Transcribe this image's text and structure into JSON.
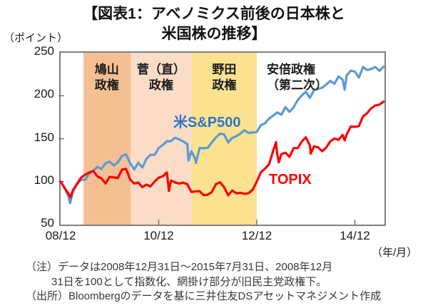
{
  "header": {
    "title_lines": [
      "【図表1：アベノミクス前後の日本株と",
      "米国株の推移】"
    ]
  },
  "chart_data": {
    "type": "line",
    "title": "【図表1：アベノミクス前後の日本株と米国株の推移】",
    "y_unit_label": "（ポイント）",
    "x_unit_label": "（年/月）",
    "x_definition": "months elapsed since 2008/12 (2008/12/31 = 0, 2015/07/31 = 79), indexed 2008/12/31 = 100",
    "ylim": [
      50,
      250
    ],
    "xlim_months": [
      0,
      79
    ],
    "grid": false,
    "y_ticks": [
      250,
      200,
      150,
      100,
      50
    ],
    "x_ticks": [
      {
        "label": "08/12",
        "month": 0
      },
      {
        "label": "10/12",
        "month": 24
      },
      {
        "label": "12/12",
        "month": 48
      },
      {
        "label": "14/12",
        "month": 72
      }
    ],
    "regions": [
      {
        "label": "鳩山政権",
        "label_lines": "鳩山\n政権",
        "start_month": 5.5,
        "end_month": 17.1,
        "color": "#F4C093",
        "label_align": "center"
      },
      {
        "label": "菅（直）政権",
        "label_lines": "菅（直）\n政権",
        "start_month": 17.1,
        "end_month": 32.1,
        "color": "#FBDCC6",
        "label_align": "center"
      },
      {
        "label": "野田政権",
        "label_lines": "野田\n政権",
        "start_month": 32.1,
        "end_month": 48.0,
        "color": "#FAE291",
        "label_align": "center"
      },
      {
        "label": "安倍政権（第二次）",
        "label_lines": "安倍政権\n（第二次）",
        "start_month": 48.0,
        "end_month": 79.0,
        "color": "#FFFFFF",
        "label_align": "left"
      }
    ],
    "series": [
      {
        "name": "米S&P500",
        "line_color": "#5B9BD5",
        "label_color": "#2E74C8",
        "points": [
          [
            0,
            100
          ],
          [
            1,
            92.5
          ],
          [
            2,
            81.5
          ],
          [
            2.3,
            74.9
          ],
          [
            3,
            88.1
          ],
          [
            4,
            96.6
          ],
          [
            5,
            102.1
          ],
          [
            6,
            102.3
          ],
          [
            7,
            109.3
          ],
          [
            8,
            112.9
          ],
          [
            9,
            117.1
          ],
          [
            10,
            114.7
          ],
          [
            11,
            121.4
          ],
          [
            12,
            123.4
          ],
          [
            13,
            119
          ],
          [
            14,
            122.4
          ],
          [
            15,
            129.8
          ],
          [
            16,
            131.8
          ],
          [
            17,
            121.2
          ],
          [
            17.8,
            116
          ],
          [
            18,
            114.1
          ],
          [
            19,
            122.1
          ],
          [
            20,
            116.4
          ],
          [
            21,
            126.6
          ],
          [
            22,
            131.3
          ],
          [
            23,
            131.2
          ],
          [
            24,
            139.2
          ],
          [
            25,
            142.5
          ],
          [
            26,
            147.1
          ],
          [
            27,
            147
          ],
          [
            28,
            151.2
          ],
          [
            29,
            149.2
          ],
          [
            30,
            146.7
          ],
          [
            31,
            143.7
          ],
          [
            31.3,
            124.5
          ],
          [
            32,
            135.5
          ],
          [
            33,
            125.5
          ],
          [
            33.1,
            121.7
          ],
          [
            34,
            139.2
          ],
          [
            35,
            138.9
          ],
          [
            36,
            139.3
          ],
          [
            37,
            145.6
          ],
          [
            38,
            151.5
          ],
          [
            39,
            155.9
          ],
          [
            40,
            154.9
          ],
          [
            41,
            145.6
          ],
          [
            42,
            151
          ],
          [
            43,
            152.9
          ],
          [
            44,
            156
          ],
          [
            45,
            159.7
          ],
          [
            46,
            156.7
          ],
          [
            47,
            157.1
          ],
          [
            48,
            157.9
          ],
          [
            49,
            165.8
          ],
          [
            50,
            167.7
          ],
          [
            51,
            173.5
          ],
          [
            52,
            176.7
          ],
          [
            53,
            180.6
          ],
          [
            54,
            177.9
          ],
          [
            55,
            186.8
          ],
          [
            56,
            181.2
          ],
          [
            57,
            186.6
          ],
          [
            58,
            194.9
          ],
          [
            59,
            200.2
          ],
          [
            60,
            204.6
          ],
          [
            61,
            197.5
          ],
          [
            62,
            206.5
          ],
          [
            63,
            207.9
          ],
          [
            64,
            209.3
          ],
          [
            65,
            213.1
          ],
          [
            66,
            217.2
          ],
          [
            67,
            213.9
          ],
          [
            68,
            222.4
          ],
          [
            69,
            218.6
          ],
          [
            69.5,
            207
          ],
          [
            70,
            223.6
          ],
          [
            71,
            229.2
          ],
          [
            72,
            228
          ],
          [
            73,
            221.2
          ],
          [
            74,
            233.5
          ],
          [
            75,
            229.9
          ],
          [
            76,
            231.1
          ],
          [
            77,
            233.5
          ],
          [
            78,
            228.9
          ],
          [
            79,
            233.7
          ]
        ]
      },
      {
        "name": "TOPIX",
        "line_color": "#FF0000",
        "label_color": "#FF0000",
        "points": [
          [
            0,
            100
          ],
          [
            1,
            92.4
          ],
          [
            2,
            85.5
          ],
          [
            2.4,
            81.6
          ],
          [
            3,
            90
          ],
          [
            4,
            97.5
          ],
          [
            5,
            104.5
          ],
          [
            6,
            108.2
          ],
          [
            7,
            110.6
          ],
          [
            8,
            112.4
          ],
          [
            9,
            105.9
          ],
          [
            10,
            103.6
          ],
          [
            11,
            97.8
          ],
          [
            12,
            105.6
          ],
          [
            13,
            104.9
          ],
          [
            14,
            104.1
          ],
          [
            15,
            113.9
          ],
          [
            16,
            114.9
          ],
          [
            17,
            102.5
          ],
          [
            18,
            97.9
          ],
          [
            19,
            98.9
          ],
          [
            20,
            93.6
          ],
          [
            21,
            96.5
          ],
          [
            22,
            94.4
          ],
          [
            23,
            100.2
          ],
          [
            24,
            104.6
          ],
          [
            25,
            106.3
          ],
          [
            26,
            110.7
          ],
          [
            26.5,
            89.2
          ],
          [
            27,
            101.2
          ],
          [
            28,
            99.1
          ],
          [
            29,
            97.7
          ],
          [
            30,
            98.8
          ],
          [
            31,
            97
          ],
          [
            32,
            88
          ],
          [
            33,
            88.6
          ],
          [
            34,
            88.9
          ],
          [
            35,
            84.2
          ],
          [
            36,
            84.8
          ],
          [
            37,
            87.9
          ],
          [
            38,
            97
          ],
          [
            39,
            99.4
          ],
          [
            40,
            93.4
          ],
          [
            41,
            84.1
          ],
          [
            42,
            89.7
          ],
          [
            43,
            86.4
          ],
          [
            44,
            86.9
          ],
          [
            45,
            85.8
          ],
          [
            46,
            86.4
          ],
          [
            47,
            90.7
          ],
          [
            48,
            100.1
          ],
          [
            49,
            111
          ],
          [
            50,
            115
          ],
          [
            51,
            120.4
          ],
          [
            52,
            135.6
          ],
          [
            52.7,
            145.9
          ],
          [
            53,
            132.2
          ],
          [
            53.4,
            122.5
          ],
          [
            54,
            131.9
          ],
          [
            55,
            133.7
          ],
          [
            56,
            128.8
          ],
          [
            57,
            139
          ],
          [
            58,
            139
          ],
          [
            59,
            146.5
          ],
          [
            60,
            151.6
          ],
          [
            61,
            142.1
          ],
          [
            61.2,
            132.6
          ],
          [
            62,
            141
          ],
          [
            63,
            140
          ],
          [
            64,
            135.3
          ],
          [
            65,
            139.8
          ],
          [
            66,
            146.9
          ],
          [
            67,
            150.1
          ],
          [
            68,
            148.7
          ],
          [
            69,
            154.4
          ],
          [
            69.5,
            148
          ],
          [
            70,
            155.2
          ],
          [
            71,
            164.1
          ],
          [
            72,
            163.8
          ],
          [
            73,
            164.7
          ],
          [
            74,
            175.9
          ],
          [
            75,
            179.6
          ],
          [
            76,
            185.4
          ],
          [
            77,
            188.5
          ],
          [
            78,
            189.7
          ],
          [
            79,
            193.1
          ]
        ]
      }
    ],
    "axis_color": "#7f7f7f"
  },
  "notes": {
    "line1": "（注）データは2008年12月31日～2015年7月31日、2008年12月",
    "line2": "31日を100として指数化、網掛け部分が旧民主党政権下。",
    "line3": "（出所）Bloombergのデータを基に三井住友DSアセットマネジメント作成"
  }
}
